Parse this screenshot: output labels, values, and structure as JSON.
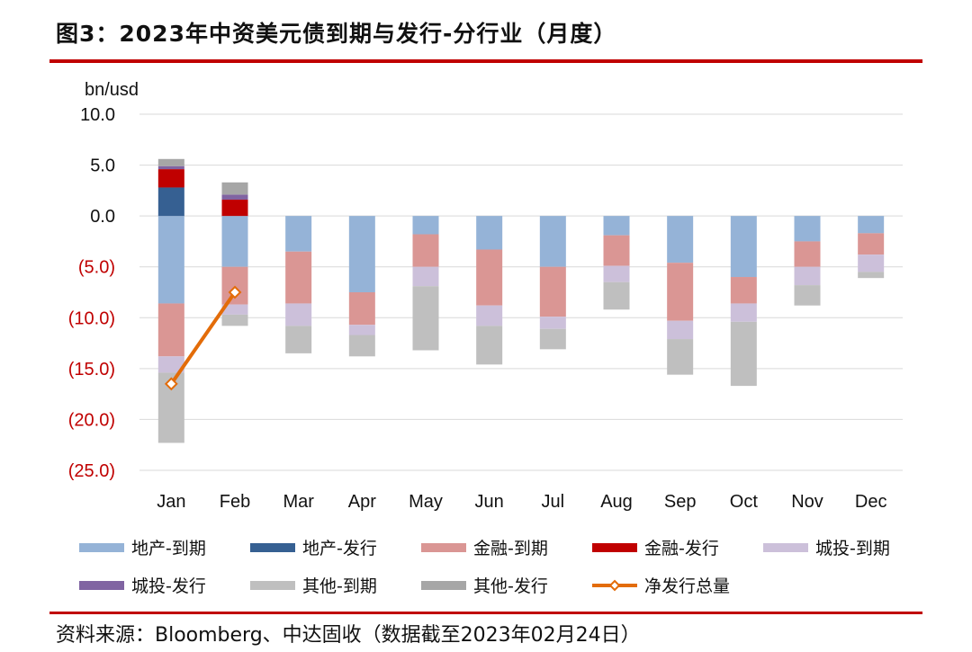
{
  "title": "图3：2023年中资美元债到期与发行-分行业（月度）",
  "source": "资料来源：Bloomberg、中达固收（数据截至2023年02月24日）",
  "colors": {
    "rule": "#c00000",
    "negative_tick": "#c00000",
    "positive_tick": "#111111",
    "grid": "#d9d9d9"
  },
  "chart_data": {
    "type": "bar",
    "stacked": true,
    "unit_label": "bn/usd",
    "categories": [
      "Jan",
      "Feb",
      "Mar",
      "Apr",
      "May",
      "Jun",
      "Jul",
      "Aug",
      "Sep",
      "Oct",
      "Nov",
      "Dec"
    ],
    "yticks": [
      "10.0",
      "5.0",
      "0.0",
      "(5.0)",
      "(10.0)",
      "(15.0)",
      "(20.0)",
      "(25.0)"
    ],
    "ylim": [
      -25,
      10
    ],
    "grid": true,
    "legend_position": "bottom",
    "series": [
      {
        "name": "地产-到期",
        "color": "#95b3d7",
        "values": [
          -8.6,
          -5.0,
          -3.5,
          -7.5,
          -1.8,
          -3.3,
          -5.0,
          -1.9,
          -4.6,
          -6.0,
          -2.5,
          -1.7
        ]
      },
      {
        "name": "地产-发行",
        "color": "#366092",
        "values": [
          2.8,
          0,
          0,
          0,
          0,
          0,
          0,
          0,
          0,
          0,
          0,
          0
        ]
      },
      {
        "name": "金融-到期",
        "color": "#da9694",
        "values": [
          -5.2,
          -3.7,
          -5.1,
          -3.2,
          -3.2,
          -5.5,
          -4.9,
          -3.0,
          -5.7,
          -2.6,
          -2.5,
          -2.1
        ]
      },
      {
        "name": "金融-发行",
        "color": "#c00000",
        "values": [
          1.8,
          1.6,
          0,
          0,
          0,
          0,
          0,
          0,
          0,
          0,
          0,
          0
        ]
      },
      {
        "name": "城投-到期",
        "color": "#ccc0da",
        "values": [
          -1.6,
          -1.0,
          -2.2,
          -1.0,
          -1.9,
          -2.0,
          -1.2,
          -1.6,
          -1.8,
          -1.8,
          -1.8,
          -1.7
        ]
      },
      {
        "name": "城投-发行",
        "color": "#8064a2",
        "values": [
          0.3,
          0.5,
          0,
          0,
          0,
          0,
          0,
          0,
          0,
          0,
          0,
          0
        ]
      },
      {
        "name": "其他-到期",
        "color": "#bfbfbf",
        "values": [
          -6.9,
          -1.1,
          -2.7,
          -2.1,
          -6.3,
          -3.8,
          -2.0,
          -2.7,
          -3.5,
          -6.3,
          -2.0,
          -0.6
        ]
      },
      {
        "name": "其他-发行",
        "color": "#a6a6a6",
        "values": [
          0.7,
          1.2,
          0,
          0,
          0,
          0,
          0,
          0,
          0,
          0,
          0,
          0
        ]
      },
      {
        "name": "净发行总量",
        "color": "#e36c09",
        "type": "line",
        "values": [
          -16.5,
          -7.5,
          null,
          null,
          null,
          null,
          null,
          null,
          null,
          null,
          null,
          null
        ]
      }
    ]
  }
}
